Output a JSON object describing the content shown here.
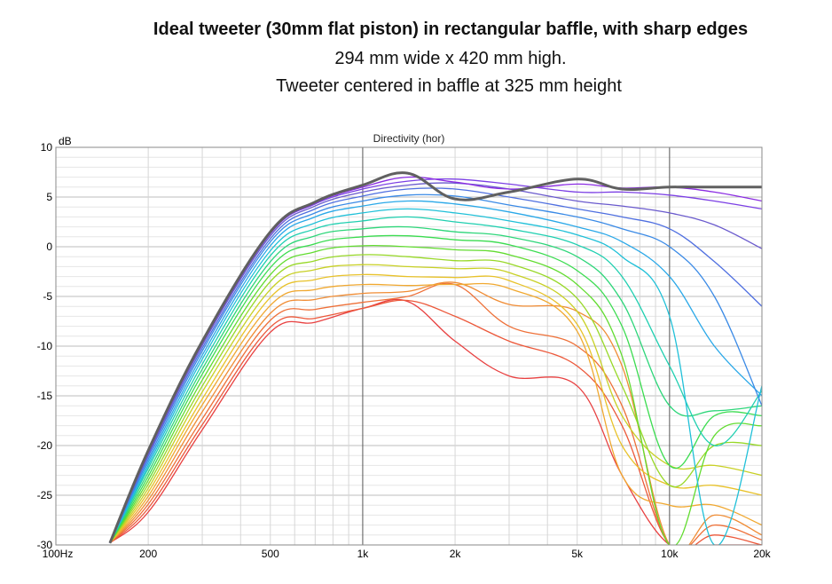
{
  "header": {
    "title": "Ideal tweeter (30mm flat piston) in rectangular baffle, with sharp edges",
    "line2": "294 mm wide x 420 mm high.",
    "line3": "Tweeter centered in baffle at 325 mm height"
  },
  "chart_data": {
    "type": "line",
    "title": "Directivity (hor)",
    "xlabel": "",
    "ylabel": "dB",
    "xscale": "log",
    "xlim": [
      100,
      20000
    ],
    "ylim": [
      -30,
      10
    ],
    "x_ticks": [
      {
        "value": 100,
        "label": "100Hz"
      },
      {
        "value": 200,
        "label": "200"
      },
      {
        "value": 500,
        "label": "500"
      },
      {
        "value": 1000,
        "label": "1k"
      },
      {
        "value": 2000,
        "label": "2k"
      },
      {
        "value": 5000,
        "label": "5k"
      },
      {
        "value": 10000,
        "label": "10k"
      },
      {
        "value": 20000,
        "label": "20k"
      }
    ],
    "y_ticks": [
      {
        "value": 10,
        "label": "10"
      },
      {
        "value": 5,
        "label": "5"
      },
      {
        "value": 0,
        "label": "0"
      },
      {
        "value": -5,
        "label": "-5"
      },
      {
        "value": -10,
        "label": "-10"
      },
      {
        "value": -15,
        "label": "-15"
      },
      {
        "value": -20,
        "label": "-20"
      },
      {
        "value": -25,
        "label": "-25"
      },
      {
        "value": -30,
        "label": "-30"
      }
    ],
    "grid": true,
    "x": [
      150,
      200,
      300,
      500,
      700,
      1000,
      1400,
      2000,
      3000,
      5000,
      7000,
      10000,
      14000,
      20000
    ],
    "series": [
      {
        "color": "#606060",
        "values": [
          -29.8,
          -20.5,
          -9.5,
          1.5,
          4.5,
          6.2,
          7.4,
          4.8,
          5.5,
          6.8,
          5.8,
          6.0,
          6.0,
          6.0
        ]
      },
      {
        "color": "#8a2be2",
        "values": [
          -29.8,
          -20.6,
          -9.6,
          1.4,
          4.4,
          6.0,
          7.0,
          6.5,
          5.8,
          6.3,
          5.9,
          6.0,
          5.5,
          4.6
        ]
      },
      {
        "color": "#7b3fe4",
        "values": [
          -29.8,
          -20.7,
          -9.7,
          1.3,
          4.3,
          5.8,
          6.6,
          6.8,
          6.3,
          5.5,
          5.5,
          5.2,
          4.6,
          3.8
        ]
      },
      {
        "color": "#6a5acd",
        "values": [
          -29.8,
          -20.9,
          -9.9,
          1.1,
          4.1,
          5.5,
          6.2,
          6.4,
          5.8,
          4.6,
          4.1,
          3.4,
          2.2,
          -0.2
        ]
      },
      {
        "color": "#4f6fe0",
        "values": [
          -29.8,
          -21.1,
          -10.2,
          0.8,
          3.8,
          5.1,
          5.8,
          5.8,
          5.0,
          3.8,
          3.0,
          1.8,
          -1.5,
          -6.0
        ]
      },
      {
        "color": "#3a8ae6",
        "values": [
          -29.8,
          -21.4,
          -10.5,
          0.5,
          3.4,
          4.6,
          5.2,
          5.1,
          4.2,
          3.0,
          1.8,
          0.0,
          -5.0,
          -16.0
        ]
      },
      {
        "color": "#2aa8e8",
        "values": [
          -29.8,
          -21.7,
          -10.9,
          0.1,
          3.0,
          4.1,
          4.6,
          4.3,
          3.5,
          2.0,
          0.5,
          -3.0,
          -10.0,
          -15.0
        ]
      },
      {
        "color": "#20c0d8",
        "values": [
          -29.8,
          -22.0,
          -11.3,
          -0.4,
          2.4,
          3.4,
          3.8,
          3.4,
          2.6,
          1.2,
          -1.0,
          -7.0,
          -30.0,
          -14.0
        ]
      },
      {
        "color": "#1fcfb0",
        "values": [
          -29.8,
          -22.3,
          -11.8,
          -0.9,
          1.8,
          2.6,
          3.0,
          2.5,
          1.8,
          0.2,
          -3.0,
          -12.0,
          -20.0,
          -14.5
        ]
      },
      {
        "color": "#2ed67a",
        "values": [
          -29.8,
          -22.7,
          -12.3,
          -1.5,
          1.1,
          1.8,
          2.0,
          1.5,
          1.0,
          -1.0,
          -5.5,
          -16.0,
          -16.5,
          -16.0
        ]
      },
      {
        "color": "#3bdc50",
        "values": [
          -29.8,
          -23.1,
          -12.8,
          -2.1,
          0.3,
          1.0,
          1.1,
          0.7,
          0.2,
          -2.4,
          -8.0,
          -22.0,
          -17.0,
          -17.0
        ]
      },
      {
        "color": "#62dc30",
        "values": [
          -29.8,
          -23.5,
          -13.4,
          -2.8,
          -0.5,
          0.1,
          0.0,
          -0.3,
          -0.8,
          -3.8,
          -11.0,
          -30.0,
          -19.0,
          -18.0
        ]
      },
      {
        "color": "#98d828",
        "values": [
          -29.8,
          -23.9,
          -14.0,
          -3.5,
          -1.4,
          -0.8,
          -1.0,
          -1.4,
          -1.7,
          -5.2,
          -14.0,
          -24.0,
          -20.0,
          -20.0
        ]
      },
      {
        "color": "#c8d024",
        "values": [
          -29.8,
          -24.3,
          -14.6,
          -4.3,
          -2.3,
          -1.8,
          -2.0,
          -2.2,
          -2.6,
          -6.5,
          -17.0,
          -22.0,
          -22.0,
          -23.0
        ]
      },
      {
        "color": "#e8c22a",
        "values": [
          -29.8,
          -24.7,
          -15.3,
          -5.1,
          -3.3,
          -2.8,
          -3.0,
          -3.1,
          -3.4,
          -7.8,
          -20.0,
          -24.0,
          -24.0,
          -25.0
        ]
      },
      {
        "color": "#f0a830",
        "values": [
          -29.8,
          -25.1,
          -15.9,
          -5.9,
          -4.3,
          -3.8,
          -3.9,
          -3.8,
          -4.2,
          -8.5,
          -23.0,
          -26.0,
          -26.0,
          -28.0
        ]
      },
      {
        "color": "#f08c34",
        "values": [
          -29.8,
          -25.5,
          -16.6,
          -6.7,
          -5.3,
          -4.7,
          -4.5,
          -3.6,
          -5.8,
          -6.5,
          -12.0,
          -30.0,
          -27.0,
          -29.0
        ]
      },
      {
        "color": "#ee7038",
        "values": [
          -29.8,
          -25.9,
          -17.3,
          -7.4,
          -6.3,
          -5.6,
          -5.0,
          -3.8,
          -8.0,
          -10.0,
          -16.0,
          -30.0,
          -28.0,
          -29.5
        ]
      },
      {
        "color": "#ec583a",
        "values": [
          -29.8,
          -26.3,
          -17.9,
          -8.1,
          -7.2,
          -6.2,
          -5.4,
          -7.0,
          -9.5,
          -12.0,
          -18.0,
          -30.0,
          -29.0,
          -30.0
        ]
      },
      {
        "color": "#e84040",
        "values": [
          -29.8,
          -26.7,
          -18.4,
          -8.6,
          -7.6,
          -6.2,
          -5.5,
          -9.5,
          -13.0,
          -14.0,
          -23.0,
          -30.0,
          -30.0,
          -30.0
        ]
      }
    ]
  }
}
